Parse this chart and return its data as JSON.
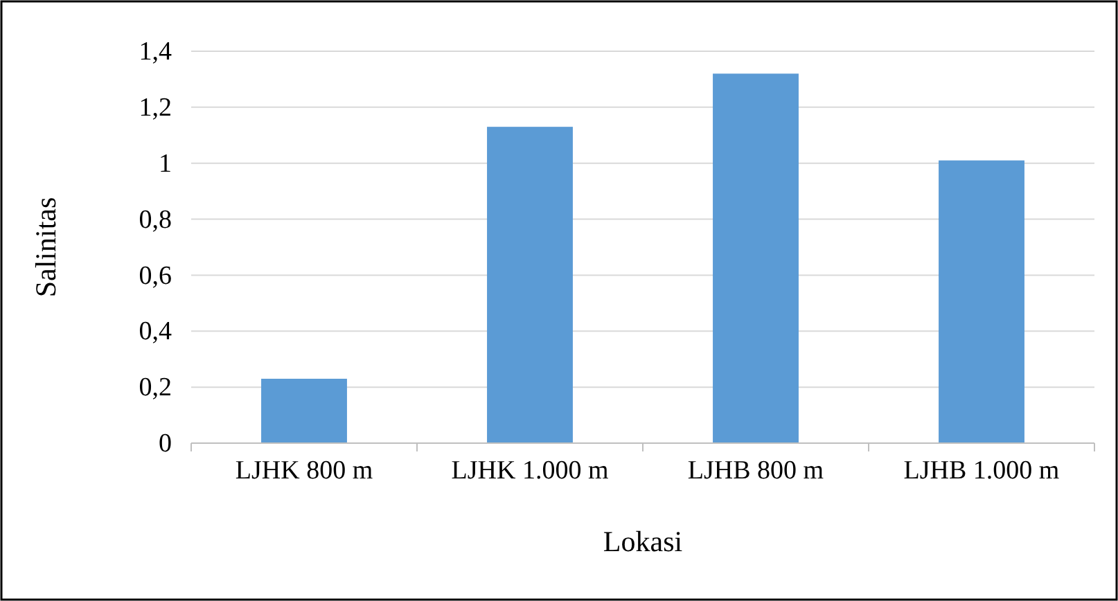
{
  "chart_data": {
    "type": "bar",
    "xlabel": "Lokasi",
    "ylabel": "Salinitas",
    "categories": [
      "LJHK 800 m",
      "LJHK 1.000 m",
      "LJHB 800 m",
      "LJHB 1.000 m"
    ],
    "values": [
      0.23,
      1.13,
      1.32,
      1.01
    ],
    "color": "#5b9bd5",
    "ylim": [
      0,
      1.4
    ],
    "yticks": [
      0,
      {
        "value": 0.2,
        "label": "0,2"
      },
      {
        "value": 0.4,
        "label": "0,4"
      },
      {
        "value": 0.6,
        "label": "0,6"
      },
      {
        "value": 0.8,
        "label": "0,8"
      },
      1,
      {
        "value": 1.2,
        "label": "1,2"
      },
      {
        "value": 1.4,
        "label": "1,4"
      }
    ],
    "grid": "y"
  }
}
